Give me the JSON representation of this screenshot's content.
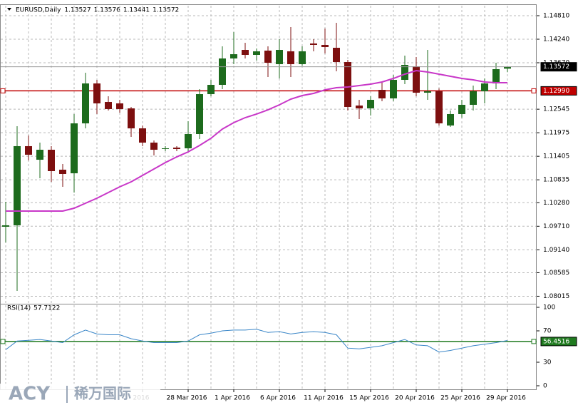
{
  "chart_data": [
    {
      "type": "candlestick",
      "title": "EURUSD,Daily",
      "ohlc": [
        1.13527,
        1.13576,
        1.13441,
        1.13572
      ],
      "categories": [
        null,
        null,
        null,
        null,
        null,
        null,
        null,
        null,
        null,
        null,
        null,
        null,
        "2016",
        null,
        null,
        null,
        "28 Mar 2016",
        null,
        null,
        null,
        "1 Apr 2016",
        null,
        null,
        null,
        "6 Apr 2016",
        null,
        null,
        null,
        "11 Apr 2016",
        null,
        null,
        null,
        "15 Apr 2016",
        null,
        null,
        null,
        "20 Apr 2016",
        null,
        null,
        null,
        "25 Apr 2016",
        null,
        null,
        null,
        "29 Apr 2016"
      ],
      "open": [
        1.09698,
        1.09733,
        1.1165,
        1.11321,
        1.11563,
        1.1108,
        1.10993,
        1.12202,
        1.13169,
        1.1272,
        1.12686,
        1.12565,
        1.12081,
        1.11736,
        1.11581,
        1.11615,
        1.11598,
        1.11943,
        1.1291,
        1.13135,
        1.13774,
        1.13981,
        1.1386,
        1.13964,
        1.13636,
        1.13947,
        1.13636,
        1.14137,
        1.14102,
        1.14033,
        1.13687,
        1.12634,
        1.12565,
        1.13014,
        1.12807,
        1.13256,
        1.13584,
        1.12945,
        1.12979,
        1.1215,
        1.12427,
        1.12651,
        1.12979,
        1.13169,
        1.13527
      ],
      "high": [
        1.10303,
        1.12133,
        1.11909,
        1.11736,
        1.1165,
        1.11218,
        1.12427,
        1.13428,
        1.13256,
        1.12858,
        1.12772,
        1.12599,
        1.1215,
        1.11788,
        1.1165,
        1.1165,
        1.12254,
        1.13031,
        1.13256,
        1.14067,
        1.14413,
        1.14154,
        1.14016,
        1.14067,
        1.1424,
        1.14534,
        1.14067,
        1.1424,
        1.14499,
        1.14637,
        1.13739,
        1.12772,
        1.12858,
        1.13204,
        1.13377,
        1.13843,
        1.13808,
        1.13981,
        1.13048,
        1.12513,
        1.12772,
        1.13118,
        1.1329,
        1.1367,
        1.13576
      ],
      "low": [
        1.09318,
        1.08144,
        1.11304,
        1.10872,
        1.10786,
        1.10665,
        1.10527,
        1.12081,
        1.12427,
        1.12513,
        1.12461,
        1.11874,
        1.1165,
        1.11425,
        1.11529,
        1.11529,
        1.11529,
        1.11822,
        1.12858,
        1.13031,
        1.13636,
        1.13774,
        1.13722,
        1.13325,
        1.1329,
        1.13325,
        1.13601,
        1.13947,
        1.13895,
        1.13463,
        1.12513,
        1.12306,
        1.12392,
        1.12738,
        1.12738,
        1.13152,
        1.12858,
        1.12772,
        1.1215,
        1.12116,
        1.1234,
        1.12513,
        1.12686,
        1.13031,
        1.13441
      ],
      "close": [
        1.09733,
        1.1165,
        1.11442,
        1.11563,
        1.11045,
        1.10976,
        1.12202,
        1.13169,
        1.12686,
        1.12548,
        1.12548,
        1.12081,
        1.11736,
        1.11563,
        1.11598,
        1.11581,
        1.11943,
        1.1291,
        1.13135,
        1.13774,
        1.13877,
        1.1386,
        1.13947,
        1.1367,
        1.13981,
        1.13636,
        1.13947,
        1.14102,
        1.1405,
        1.13687,
        1.12599,
        1.12565,
        1.12772,
        1.12807,
        1.13256,
        1.13618,
        1.12945,
        1.12979,
        1.12202,
        1.12427,
        1.12651,
        1.12979,
        1.13169,
        1.13515,
        1.13572
      ],
      "up_color": "#1d6b1d",
      "down_color": "#7d0f0f",
      "ma": {
        "color": "#c837c8",
        "values": [
          1.10078,
          1.10078,
          1.10078,
          1.10078,
          1.10078,
          1.10078,
          1.10147,
          1.10268,
          1.10389,
          1.10527,
          1.10665,
          1.10786,
          1.10942,
          1.11097,
          1.11252,
          1.1139,
          1.11511,
          1.11667,
          1.1184,
          1.12064,
          1.1222,
          1.1234,
          1.12427,
          1.1253,
          1.12651,
          1.12789,
          1.12876,
          1.12928,
          1.13014,
          1.13066,
          1.13083,
          1.13118,
          1.13152,
          1.13204,
          1.1329,
          1.13394,
          1.1348,
          1.13446,
          1.13394,
          1.13342,
          1.1329,
          1.13256,
          1.13204,
          1.13187,
          1.13187
        ]
      },
      "hline": {
        "value": 1.1299,
        "label": "1.12990",
        "color": "#c00000"
      },
      "ylim": [
        1.0785,
        1.1502
      ],
      "yticks": [
        {
          "value": 1.1481,
          "label": "1.14810"
        },
        {
          "value": 1.1424,
          "label": "1.14240"
        },
        {
          "value": 1.1367,
          "label": "1.13670"
        },
        {
          "value": 1.12545,
          "label": "1.12545"
        },
        {
          "value": 1.11975,
          "label": "1.11975"
        },
        {
          "value": 1.11405,
          "label": "1.11405"
        },
        {
          "value": 1.10835,
          "label": "1.10835"
        },
        {
          "value": 1.1028,
          "label": "1.10280"
        },
        {
          "value": 1.0971,
          "label": "1.09710"
        },
        {
          "value": 1.0914,
          "label": "1.09140"
        },
        {
          "value": 1.08585,
          "label": "1.08585"
        },
        {
          "value": 1.08015,
          "label": "1.08015"
        }
      ],
      "grid": true
    },
    {
      "type": "line",
      "title": "RSI(14)",
      "color": "#3a86c8",
      "values": [
        46,
        57,
        58,
        59,
        57,
        55,
        65,
        71,
        66,
        65,
        65,
        60,
        57,
        55,
        55,
        55,
        57,
        65,
        67,
        70,
        71,
        71,
        72,
        68,
        69,
        66,
        68,
        69,
        68,
        65,
        48,
        47,
        49,
        51,
        55,
        59,
        52,
        51,
        43,
        45,
        48,
        51,
        53,
        55,
        57.7122
      ],
      "hline": {
        "value": 56.4516,
        "color": "#1f7a1f"
      },
      "ylim": [
        0,
        100
      ],
      "yticks": [
        100,
        70,
        30,
        0
      ]
    }
  ],
  "watermark": {
    "brand": "ACY",
    "name": "稀万国际"
  }
}
